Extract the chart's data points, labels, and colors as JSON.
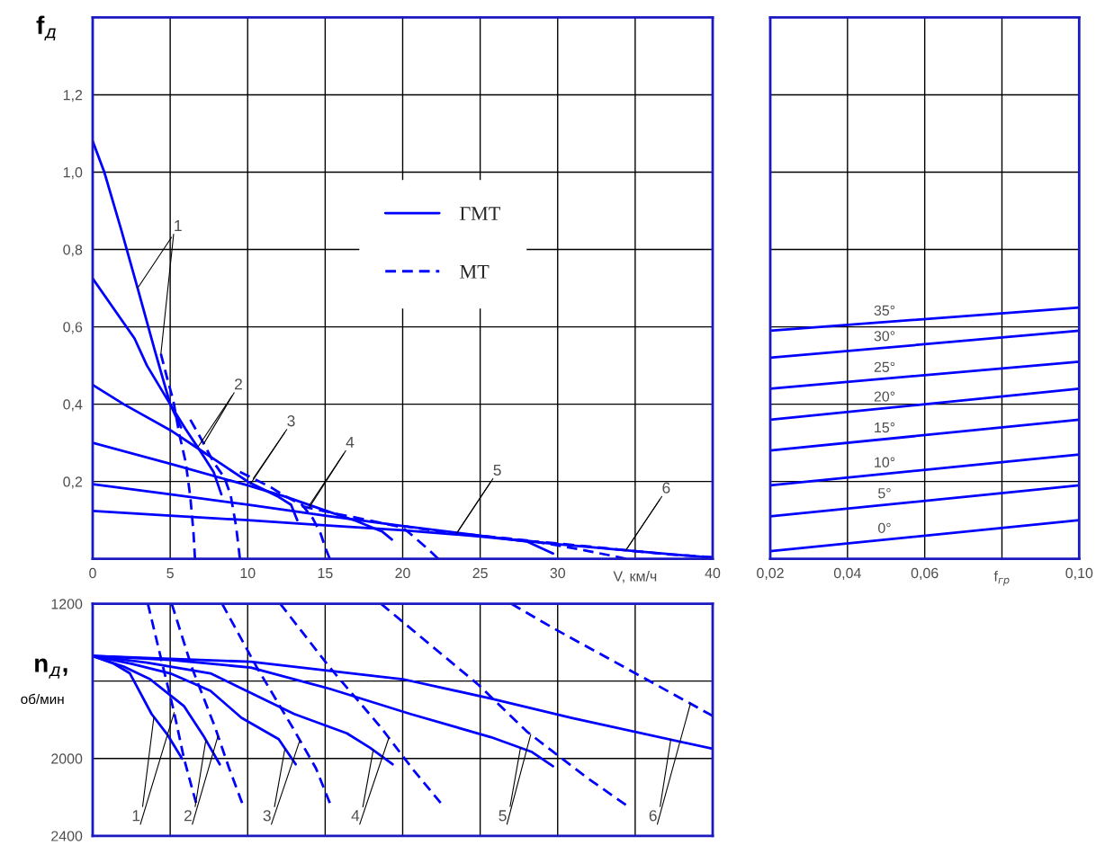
{
  "chart_data": [
    {
      "type": "line",
      "xlabel": "V, км/ч",
      "ylabel": "f$_{д}$",
      "xlim": [
        0,
        40
      ],
      "ylim": [
        0,
        1.4
      ],
      "xticks": [
        {
          "value": 0,
          "label": "0"
        },
        5,
        10,
        15,
        20,
        25,
        30,
        {
          "value": 35,
          "label": null
        },
        40
      ],
      "yticks": [
        {
          "value": 0.2,
          "label": "0,2"
        },
        {
          "value": 0.4,
          "label": "0,4"
        },
        {
          "value": 0.6,
          "label": "0,6"
        },
        {
          "value": 0.8,
          "label": "0,8"
        },
        {
          "value": 1.0,
          "label": "1,0"
        },
        {
          "value": 1.2,
          "label": "1,2"
        }
      ],
      "grid": true,
      "legend": "center",
      "series": [
        {
          "name": "ГМТ",
          "color": "#0000ff",
          "line_style": "solid",
          "x": [
            0,
            0.75,
            1.85,
            2.9,
            4.0,
            5.0,
            5.7
          ],
          "values": [
            1.08,
            1.0,
            0.85,
            0.7,
            0.54,
            0.4,
            0.34
          ]
        },
        {
          "color": "#0000ff",
          "line_style": "solid",
          "x": [
            0,
            2.7,
            3.5,
            5.0,
            6.0,
            7.0,
            7.8,
            8.3
          ],
          "values": [
            0.725,
            0.57,
            0.5,
            0.4,
            0.335,
            0.275,
            0.225,
            0.167
          ]
        },
        {
          "color": "#0000ff",
          "line_style": "solid",
          "x": [
            0,
            2.0,
            5.0,
            7.0,
            8.5,
            10.0,
            12.0,
            12.8,
            13.2
          ],
          "values": [
            0.45,
            0.4,
            0.333,
            0.28,
            0.24,
            0.2,
            0.16,
            0.14,
            0.1
          ]
        },
        {
          "color": "#0000ff",
          "line_style": "solid",
          "x": [
            0,
            5.0,
            10.0,
            12.5,
            15.0,
            17.0,
            18.7,
            19.3
          ],
          "values": [
            0.3,
            0.246,
            0.19,
            0.16,
            0.125,
            0.098,
            0.07,
            0.05
          ]
        },
        {
          "color": "#0000ff",
          "line_style": "solid",
          "x": [
            0,
            5,
            10,
            15,
            20,
            25,
            28,
            29.7
          ],
          "values": [
            0.193,
            0.167,
            0.14,
            0.112,
            0.085,
            0.06,
            0.045,
            0.014
          ]
        },
        {
          "color": "#0000ff",
          "line_style": "solid",
          "x": [
            0,
            5,
            10,
            15,
            20,
            25,
            30,
            35,
            40
          ],
          "values": [
            0.124,
            0.112,
            0.1,
            0.087,
            0.074,
            0.058,
            0.038,
            0.02,
            0.003
          ]
        },
        {
          "name": "МТ",
          "color": "#0000ff",
          "line_style": "dashed",
          "x": [
            4.4,
            4.85,
            5.2,
            5.6,
            6.0,
            6.3,
            6.5,
            6.6
          ],
          "values": [
            0.53,
            0.46,
            0.41,
            0.32,
            0.25,
            0.16,
            0.07,
            0
          ]
        },
        {
          "color": "#0000ff",
          "line_style": "dashed",
          "x": [
            6.3,
            7.0,
            7.8,
            8.5,
            8.9,
            9.25,
            9.5
          ],
          "values": [
            0.36,
            0.31,
            0.25,
            0.21,
            0.165,
            0.085,
            0
          ]
        },
        {
          "color": "#0000ff",
          "line_style": "dashed",
          "x": [
            9.5,
            10.5,
            11.5,
            12.5,
            13.5,
            14.2,
            14.7,
            15.0,
            15.3
          ],
          "values": [
            0.225,
            0.205,
            0.185,
            0.16,
            0.14,
            0.105,
            0.066,
            0.03,
            0
          ]
        },
        {
          "color": "#0000ff",
          "line_style": "dashed",
          "x": [
            13.5,
            15.8,
            17.2,
            20,
            20.7,
            21.5,
            22.3
          ],
          "values": [
            0.136,
            0.116,
            0.105,
            0.081,
            0.058,
            0.03,
            0
          ]
        },
        {
          "color": "#0000ff",
          "line_style": "dashed",
          "x": [
            20,
            22.5,
            25,
            28,
            30,
            32,
            33.5,
            34.4
          ],
          "values": [
            0.085,
            0.07,
            0.06,
            0.048,
            0.035,
            0.02,
            0.008,
            0
          ]
        },
        {
          "color": "#0000ff",
          "line_style": "dashed",
          "x": [
            27,
            30,
            33,
            35,
            37,
            40
          ],
          "values": [
            0.05,
            0.04,
            0.028,
            0.02,
            0.012,
            0.004
          ]
        }
      ],
      "annotations": [
        {
          "text": "1",
          "x": 2.9,
          "y": 0.7
        },
        {
          "text": "2",
          "x": 6.8,
          "y": 0.29
        },
        {
          "text": "3",
          "x": 10.2,
          "y": 0.195
        },
        {
          "text": "4",
          "x": 14.0,
          "y": 0.14
        },
        {
          "text": "5",
          "x": 23.5,
          "y": 0.068
        },
        {
          "text": "6",
          "x": 34.4,
          "y": 0.022
        }
      ]
    },
    {
      "type": "line",
      "ylabel": "n$_{д}$,\nоб/мин",
      "xlim": [
        0,
        40
      ],
      "ylim": [
        2400,
        1200
      ],
      "xticks": [
        0,
        5,
        10,
        15,
        20,
        25,
        30,
        35,
        40
      ],
      "yticks": [
        1200,
        {
          "value": 1600,
          "label": null
        },
        2000,
        2400
      ],
      "tick_labels": "y",
      "grid": true,
      "series": [
        {
          "color": "#0000ff",
          "line_style": "solid",
          "x": [
            0,
            1.36,
            2.4,
            3.8,
            4.85,
            5.76
          ],
          "values": [
            1470,
            1510,
            1560,
            1770,
            1880,
            2000
          ]
        },
        {
          "color": "#0000ff",
          "line_style": "solid",
          "x": [
            0,
            2.0,
            3.7,
            5.9,
            7.2,
            8.2
          ],
          "values": [
            1470,
            1525,
            1590,
            1730,
            1890,
            2030
          ]
        },
        {
          "color": "#0000ff",
          "line_style": "solid",
          "x": [
            0,
            2.5,
            5.0,
            7.6,
            9.6,
            12.0,
            13.1
          ],
          "values": [
            1470,
            1510,
            1560,
            1650,
            1790,
            1900,
            2030
          ]
        },
        {
          "color": "#0000ff",
          "line_style": "solid",
          "x": [
            0,
            3.5,
            7.6,
            13.0,
            16.4,
            17.9,
            19.35
          ],
          "values": [
            1470,
            1505,
            1560,
            1770,
            1870,
            1945,
            2030
          ]
        },
        {
          "color": "#0000ff",
          "line_style": "solid",
          "x": [
            0,
            5.0,
            10.2,
            15.3,
            20.5,
            25.7,
            28.3,
            29.7
          ],
          "values": [
            1470,
            1490,
            1530,
            1640,
            1770,
            1890,
            1965,
            2040
          ]
        },
        {
          "color": "#0000ff",
          "line_style": "solid",
          "x": [
            0,
            10.2,
            20.0,
            25.7,
            30.9,
            40
          ],
          "values": [
            1470,
            1500,
            1590,
            1690,
            1790,
            1950
          ]
        },
        {
          "color": "#0000ff",
          "line_style": "dashed",
          "x": [
            3.56,
            4.4,
            5.25,
            5.89,
            6.67
          ],
          "values": [
            1200,
            1480,
            1760,
            2000,
            2230
          ]
        },
        {
          "color": "#0000ff",
          "line_style": "dashed",
          "x": [
            5.1,
            6.4,
            7.9,
            8.8,
            9.64
          ],
          "values": [
            1200,
            1530,
            1840,
            2050,
            2230
          ]
        },
        {
          "color": "#0000ff",
          "line_style": "dashed",
          "x": [
            8.35,
            10.6,
            12.9,
            14.4,
            15.3
          ],
          "values": [
            1200,
            1530,
            1840,
            2050,
            2230
          ]
        },
        {
          "color": "#0000ff",
          "line_style": "dashed",
          "x": [
            12.1,
            15.3,
            18.6,
            20.6,
            22.45
          ],
          "values": [
            1200,
            1530,
            1840,
            2050,
            2230
          ]
        },
        {
          "color": "#0000ff",
          "line_style": "dashed",
          "x": [
            18.6,
            24.9,
            28.0,
            31.9,
            34.4
          ],
          "values": [
            1200,
            1620,
            1860,
            2100,
            2240
          ]
        },
        {
          "color": "#0000ff",
          "line_style": "dashed",
          "x": [
            27.0,
            29.8,
            34.8,
            40
          ],
          "values": [
            1200,
            1330,
            1550,
            1780
          ]
        }
      ],
      "annotations": [
        {
          "text": "1",
          "x": 3.95,
          "y": 1785
        },
        {
          "text": "2",
          "x": 7.3,
          "y": 1905
        },
        {
          "text": "3",
          "x": 12.4,
          "y": 1950
        },
        {
          "text": "4",
          "x": 18.1,
          "y": 1955
        },
        {
          "text": "5",
          "x": 27.6,
          "y": 1945
        },
        {
          "text": "6",
          "x": 37.3,
          "y": 1900
        }
      ]
    },
    {
      "type": "line",
      "xlabel": "f$_{гр}$",
      "xlim": [
        0.02,
        0.1
      ],
      "ylim": [
        0,
        1.4
      ],
      "xticks": [
        {
          "value": 0.02,
          "label": "0,02"
        },
        {
          "value": 0.04,
          "label": "0,04"
        },
        {
          "value": 0.06,
          "label": "0,06"
        },
        {
          "value": 0.08,
          "label": null
        },
        {
          "value": 0.1,
          "label": "0,10"
        }
      ],
      "yticks": [
        0.2,
        0.4,
        0.6,
        0.8,
        1.0,
        1.2
      ],
      "tick_labels": "x",
      "grid": true,
      "series": [
        {
          "name": "0°",
          "color": "#0000ff",
          "x": [
            0.02,
            0.1
          ],
          "values": [
            0.02,
            0.1
          ]
        },
        {
          "name": "5°",
          "color": "#0000ff",
          "x": [
            0.02,
            0.1
          ],
          "values": [
            0.11,
            0.19
          ]
        },
        {
          "name": "10°",
          "color": "#0000ff",
          "x": [
            0.02,
            0.1
          ],
          "values": [
            0.19,
            0.27
          ]
        },
        {
          "name": "15°",
          "color": "#0000ff",
          "x": [
            0.02,
            0.1
          ],
          "values": [
            0.28,
            0.36
          ]
        },
        {
          "name": "20°",
          "color": "#0000ff",
          "x": [
            0.02,
            0.1
          ],
          "values": [
            0.36,
            0.44
          ]
        },
        {
          "name": "25°",
          "color": "#0000ff",
          "x": [
            0.02,
            0.1
          ],
          "values": [
            0.44,
            0.51
          ]
        },
        {
          "name": "30°",
          "color": "#0000ff",
          "x": [
            0.02,
            0.1
          ],
          "values": [
            0.52,
            0.59
          ]
        },
        {
          "name": "35°",
          "color": "#0000ff",
          "x": [
            0.02,
            0.1
          ],
          "values": [
            0.59,
            0.65
          ]
        }
      ]
    }
  ]
}
